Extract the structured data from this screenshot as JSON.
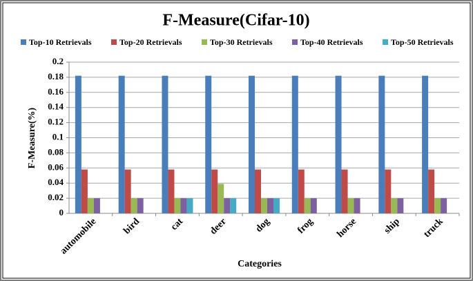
{
  "chart_data": {
    "type": "bar",
    "title": "F-Measure(Cifar-10)",
    "x_label": "Categories",
    "y_label": "F-Measure(%)",
    "categories": [
      "automobile",
      "bird",
      "cat",
      "deer",
      "dog",
      "frog",
      "horse",
      "ship",
      "truck"
    ],
    "series": [
      {
        "name": "Top-10 Retrievals",
        "color": "#4a7ebb",
        "values": [
          0.182,
          0.182,
          0.182,
          0.182,
          0.182,
          0.182,
          0.182,
          0.182,
          0.182
        ]
      },
      {
        "name": "Top-20 Retrievals",
        "color": "#be4b48",
        "values": [
          0.058,
          0.058,
          0.058,
          0.058,
          0.058,
          0.058,
          0.058,
          0.058,
          0.058
        ]
      },
      {
        "name": "Top-30 Retrievals",
        "color": "#98b954",
        "values": [
          0.02,
          0.02,
          0.02,
          0.039,
          0.02,
          0.02,
          0.02,
          0.02,
          0.02
        ]
      },
      {
        "name": "Top-40 Retrievals",
        "color": "#7d60a0",
        "values": [
          0.02,
          0.02,
          0.02,
          0.02,
          0.02,
          0.02,
          0.02,
          0.02,
          0.02
        ]
      },
      {
        "name": "Top-50 Retrievals",
        "color": "#46aac5",
        "values": [
          0,
          0,
          0.02,
          0.02,
          0.02,
          0,
          0,
          0,
          0
        ]
      }
    ],
    "ylim": [
      0,
      0.2
    ],
    "yticks": [
      0,
      0.02,
      0.04,
      0.06,
      0.08,
      0.1,
      0.12,
      0.14,
      0.16,
      0.18,
      0.2
    ],
    "grid": true,
    "legend": "top"
  }
}
